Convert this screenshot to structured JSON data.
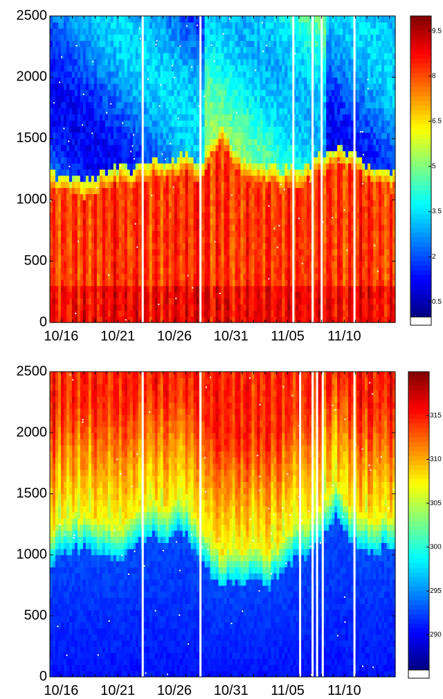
{
  "chart_data": [
    {
      "type": "heatmap",
      "title": "",
      "xlabel": "",
      "ylabel": "",
      "x_tick_labels": [
        "10/16",
        "10/21",
        "10/26",
        "10/31",
        "11/05",
        "11/10"
      ],
      "x_tick_day_offsets": [
        1,
        6,
        11,
        16,
        21,
        26
      ],
      "x_range_days": [
        0,
        30.5
      ],
      "y_ticks": [
        0,
        500,
        1000,
        1500,
        2000,
        2500
      ],
      "ylim": [
        0,
        2500
      ],
      "colorbar": {
        "ticks": [
          0.5,
          2,
          3.5,
          5,
          6.5,
          8,
          9.5
        ],
        "tick_labels": [
          "0.5",
          "2",
          "3.5",
          "5",
          "6.5",
          "8",
          "9.5"
        ],
        "range": [
          0,
          10
        ]
      },
      "layer_top_approx": [
        1150,
        1120,
        1100,
        1080,
        1120,
        1180,
        1200,
        1150,
        1200,
        1250,
        1230,
        1280,
        1300,
        1200,
        1400,
        1550,
        1300,
        1250,
        1200,
        1180,
        1150,
        1200,
        1180,
        1250,
        1300,
        1350,
        1300,
        1250,
        1200,
        1150,
        1150
      ],
      "gap_day_offsets": [
        8.2,
        13.3,
        21.5,
        23.2,
        24.0,
        26.9
      ],
      "colormap": "jet",
      "grid": false
    },
    {
      "type": "heatmap",
      "title": "",
      "xlabel": "",
      "ylabel": "",
      "x_tick_labels": [
        "10/16",
        "10/21",
        "10/26",
        "10/31",
        "11/05",
        "11/10"
      ],
      "x_tick_day_offsets": [
        1,
        6,
        11,
        16,
        21,
        26
      ],
      "x_range_days": [
        0,
        30.5
      ],
      "y_ticks": [
        0,
        500,
        1000,
        1500,
        2000,
        2500
      ],
      "ylim": [
        0,
        2500
      ],
      "colorbar": {
        "ticks": [
          290,
          295,
          300,
          305,
          310,
          315
        ],
        "tick_labels": [
          "290",
          "295",
          "300",
          "305",
          "310",
          "315"
        ],
        "range": [
          286,
          320
        ]
      },
      "layer_top_approx": [
        1000,
        1050,
        1100,
        1100,
        1080,
        1050,
        1000,
        1100,
        1150,
        1200,
        1150,
        1250,
        1200,
        1000,
        900,
        800,
        850,
        800,
        850,
        800,
        900,
        1000,
        1050,
        1100,
        1250,
        1400,
        1200,
        1100,
        1050,
        1100,
        1100
      ],
      "gap_day_offsets": [
        8.2,
        13.3,
        22.1,
        23.2,
        23.6,
        24.1,
        26.9
      ],
      "colormap": "jet",
      "grid": false
    }
  ]
}
